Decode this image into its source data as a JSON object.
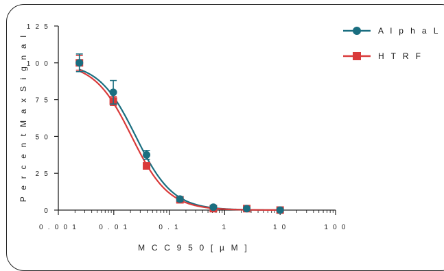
{
  "chart_data": {
    "type": "scatter",
    "title": "",
    "xlabel": "M C C 9 5 0   [ µ M ]",
    "ylabel": "P e r c e n t   M a x   S i g n a l",
    "x_scale": "log",
    "xlim": [
      0.001,
      100
    ],
    "ylim": [
      0,
      125
    ],
    "x_ticks": [
      0.001,
      0.01,
      0.1,
      1,
      10,
      100
    ],
    "x_tick_labels": [
      "0 . 0 0 1",
      "0 . 0 1",
      "0 . 1",
      "1",
      "1 0",
      "1 0 0"
    ],
    "y_ticks": [
      0,
      25,
      50,
      75,
      100,
      125
    ],
    "y_tick_labels": [
      "0",
      "2 5",
      "5 0",
      "7 5",
      "1 0 0",
      "1 2 5"
    ],
    "grid": false,
    "legend_position": "top-right",
    "series": [
      {
        "name": "A l p h a L I S A",
        "color": "#1a6e80",
        "marker": "circle",
        "x": [
          0.0024,
          0.0098,
          0.039,
          0.156,
          0.625,
          2.5,
          10
        ],
        "y": [
          100,
          80,
          37.5,
          7.5,
          2,
          1,
          0
        ],
        "error": [
          6,
          8,
          3,
          1.5,
          1,
          0.5,
          0.5
        ]
      },
      {
        "name": "H T R F",
        "color": "#d93a3a",
        "marker": "square",
        "x": [
          0.0024,
          0.0098,
          0.039,
          0.156,
          0.625,
          2.5,
          10
        ],
        "y": [
          100,
          74,
          30,
          7,
          1,
          1,
          0
        ],
        "error": [
          5,
          3,
          1.5,
          1,
          0.5,
          0.5,
          0.5
        ]
      }
    ]
  }
}
